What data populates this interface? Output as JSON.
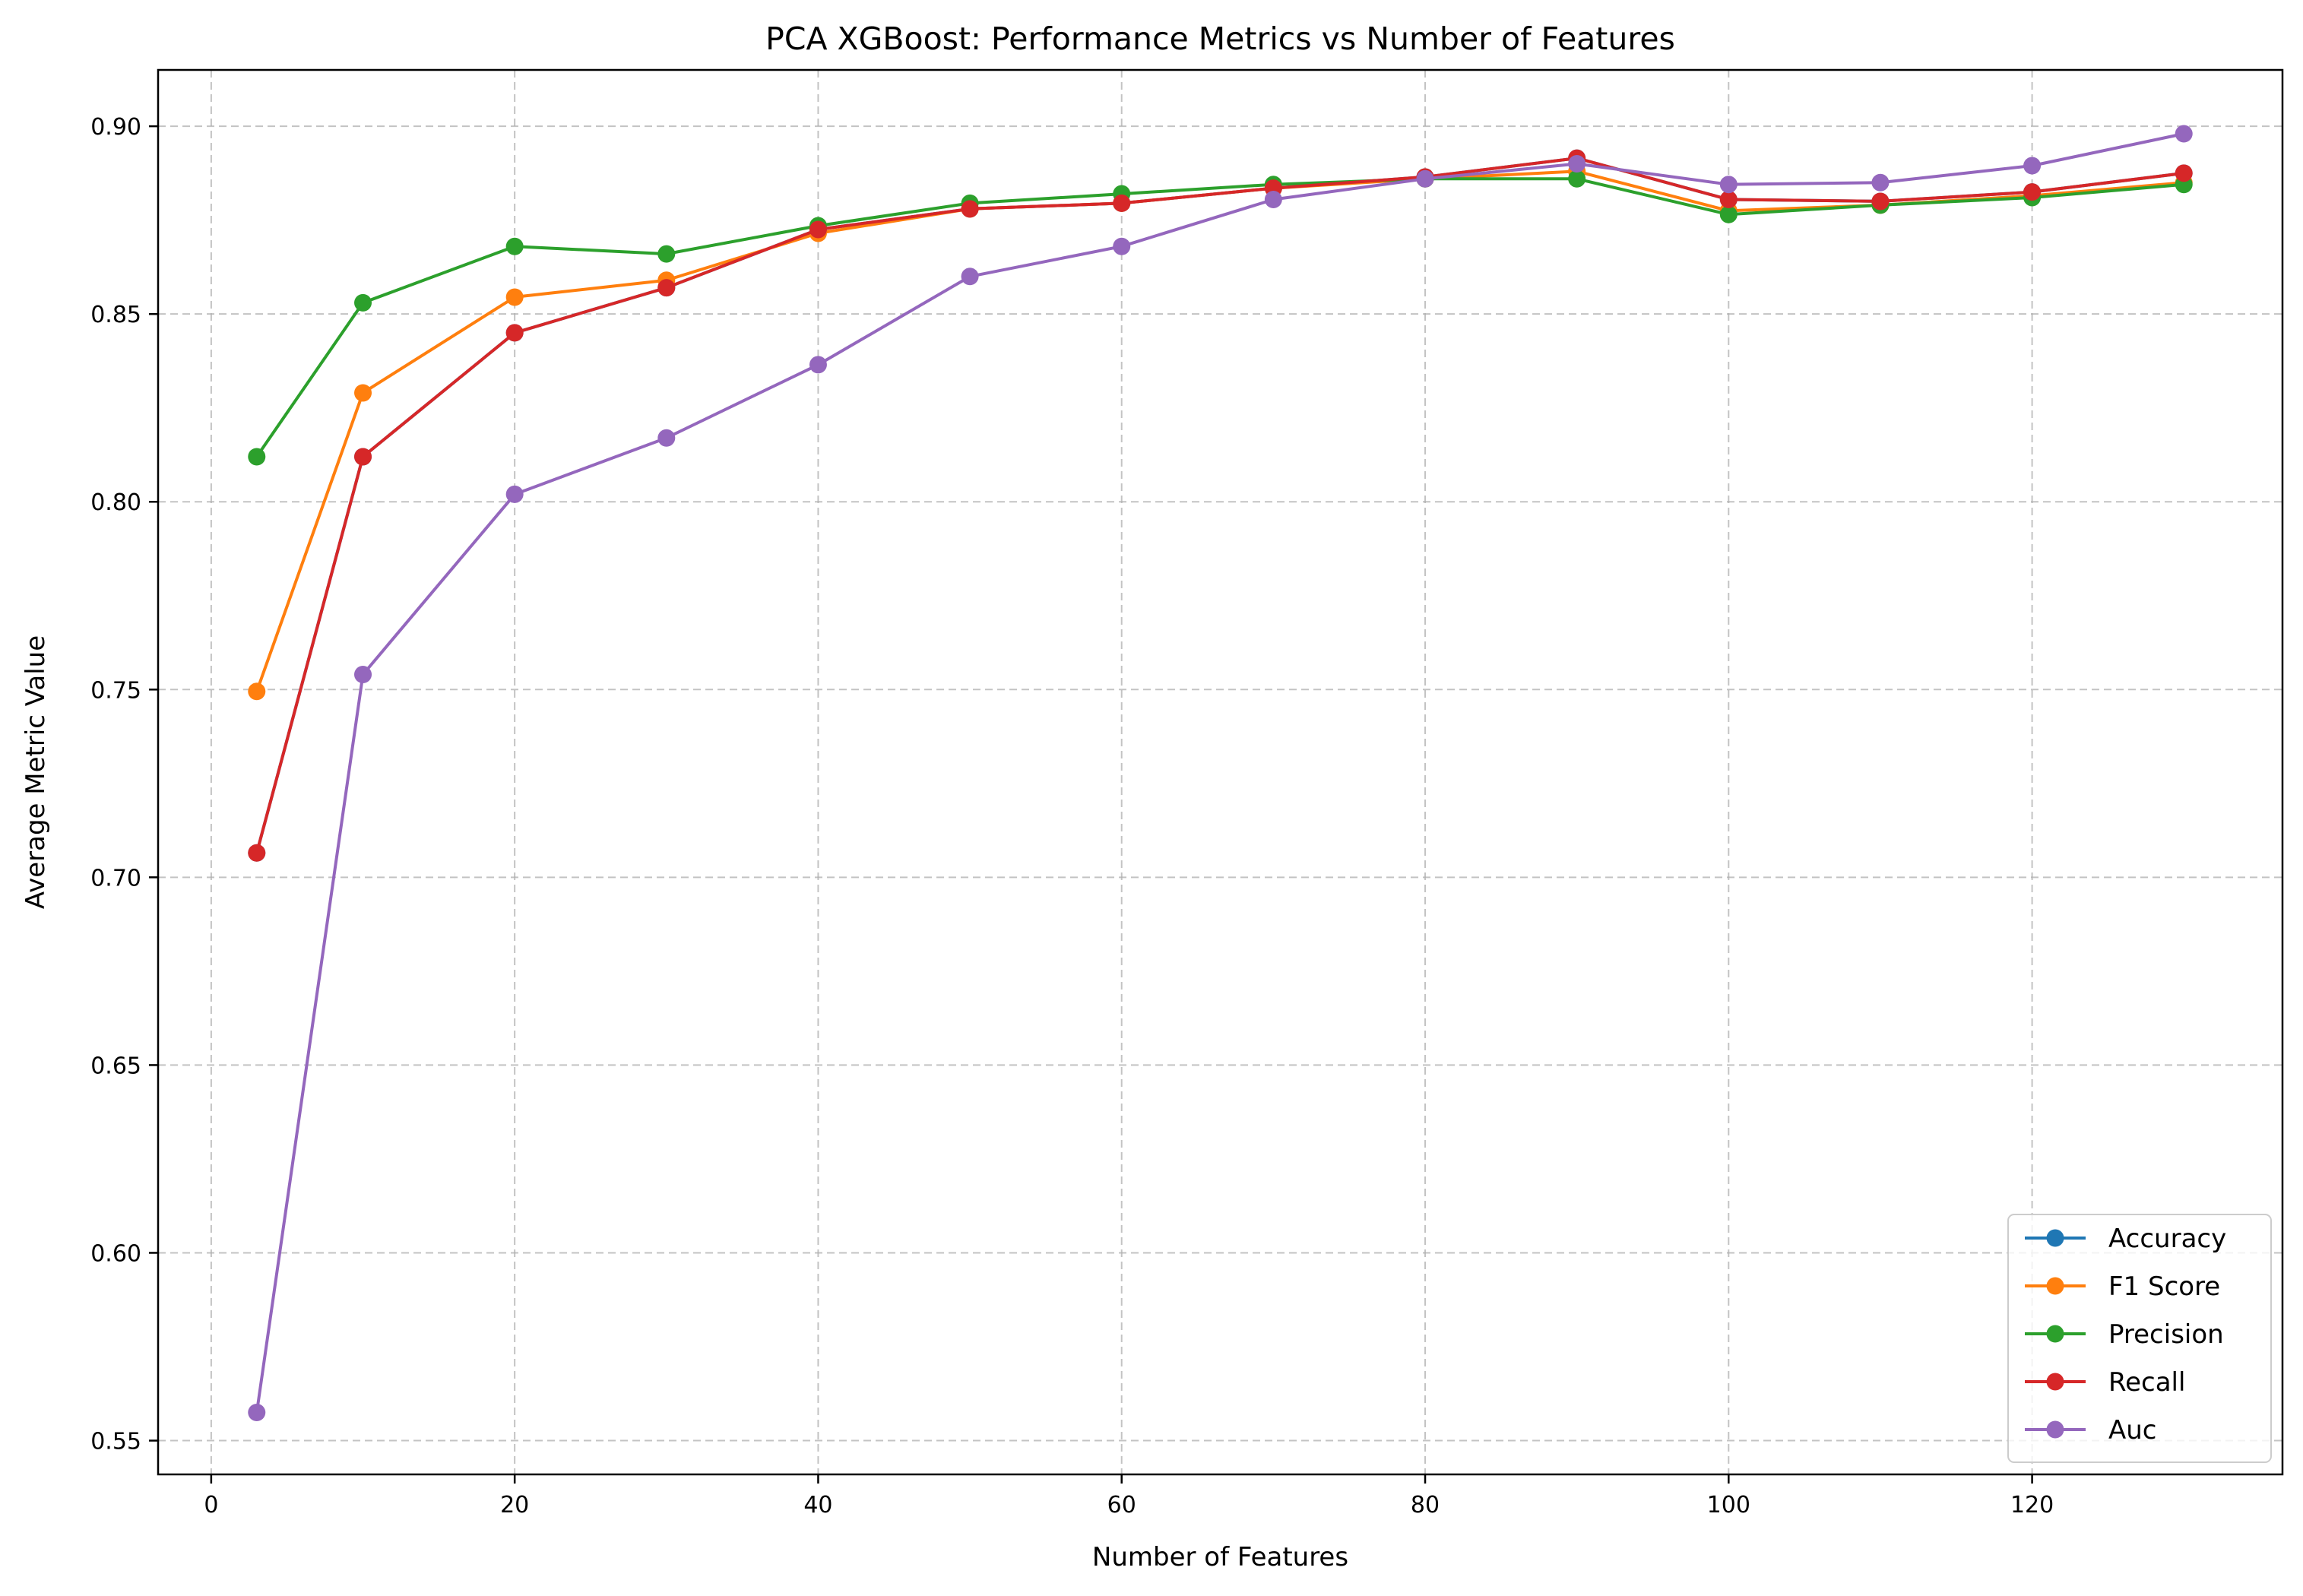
{
  "chart_data": {
    "type": "line",
    "title": "PCA XGBoost: Performance Metrics vs Number of Features",
    "xlabel": "Number of Features",
    "ylabel": "Average Metric Value",
    "xlim": [
      -3.5,
      136.5
    ],
    "ylim": [
      0.541,
      0.915
    ],
    "xticks": [
      0,
      20,
      40,
      60,
      80,
      100,
      120
    ],
    "yticks": [
      0.55,
      0.6,
      0.65,
      0.7,
      0.75,
      0.8,
      0.85,
      0.9
    ],
    "ytick_labels": [
      "0.55",
      "0.60",
      "0.65",
      "0.70",
      "0.75",
      "0.80",
      "0.85",
      "0.90"
    ],
    "grid": true,
    "legend_position": "lower-right",
    "x": [
      3,
      10,
      20,
      30,
      40,
      50,
      60,
      70,
      80,
      90,
      100,
      110,
      120,
      130
    ],
    "series": [
      {
        "name": "Accuracy",
        "color": "#1f77b4",
        "values": [
          0.7065,
          0.812,
          0.845,
          0.857,
          0.8725,
          0.878,
          0.8795,
          0.8835,
          0.8865,
          0.8915,
          0.8805,
          0.88,
          0.8825,
          0.8875
        ]
      },
      {
        "name": "F1 Score",
        "color": "#ff7f0e",
        "values": [
          0.7495,
          0.829,
          0.8545,
          0.859,
          0.8715,
          0.878,
          0.8795,
          0.8835,
          0.886,
          0.888,
          0.8775,
          0.879,
          0.8815,
          0.885
        ]
      },
      {
        "name": "Precision",
        "color": "#2ca02c",
        "values": [
          0.812,
          0.853,
          0.868,
          0.866,
          0.8735,
          0.8795,
          0.882,
          0.8845,
          0.886,
          0.886,
          0.8765,
          0.879,
          0.881,
          0.8845
        ]
      },
      {
        "name": "Recall",
        "color": "#d62728",
        "values": [
          0.7065,
          0.812,
          0.845,
          0.857,
          0.8725,
          0.878,
          0.8795,
          0.8835,
          0.8865,
          0.8915,
          0.8805,
          0.88,
          0.8825,
          0.8875
        ]
      },
      {
        "name": "Auc",
        "color": "#9467bd",
        "values": [
          0.5575,
          0.754,
          0.802,
          0.817,
          0.8365,
          0.86,
          0.868,
          0.8805,
          0.886,
          0.89,
          0.8845,
          0.885,
          0.8895,
          0.898
        ]
      }
    ]
  }
}
